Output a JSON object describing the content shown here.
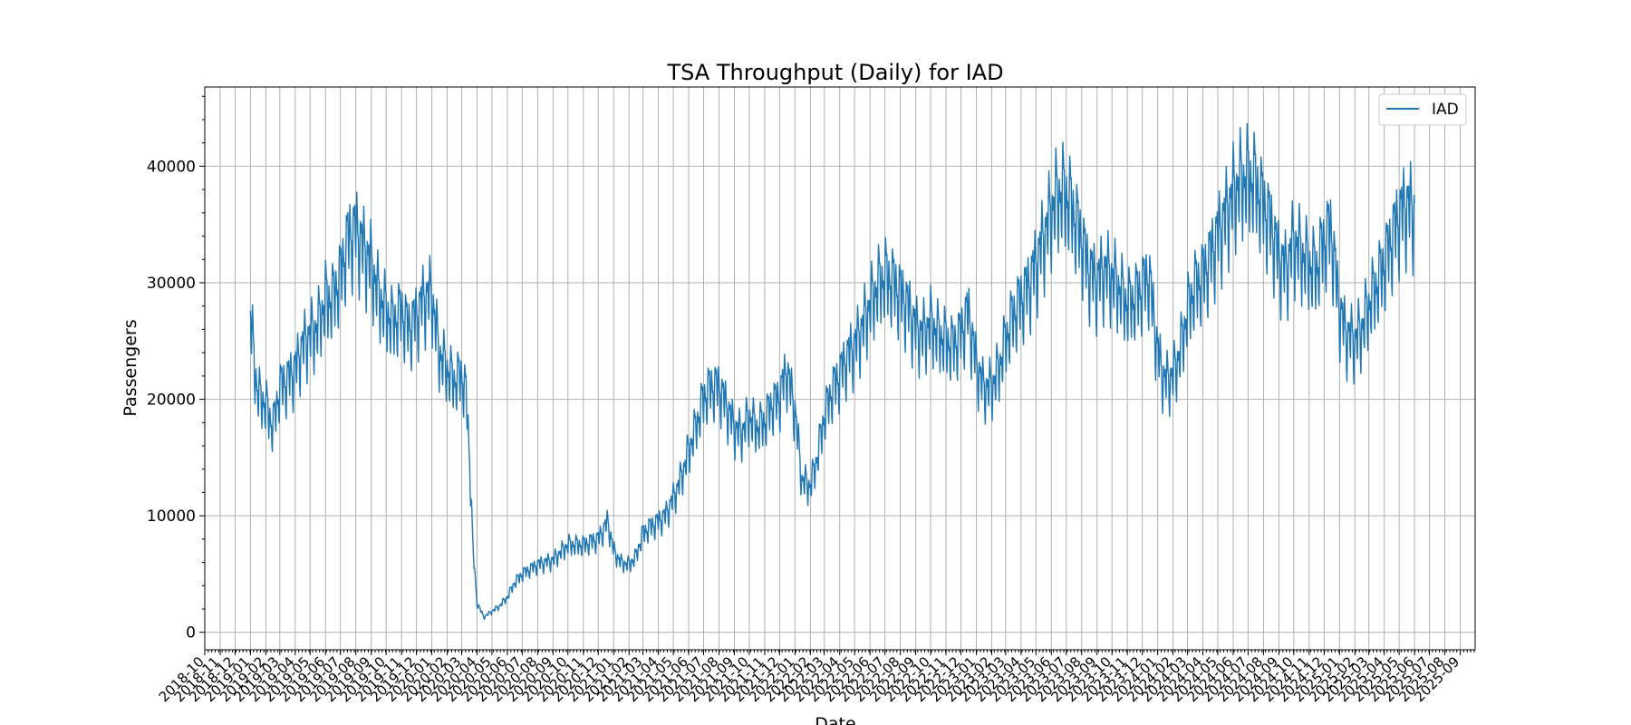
{
  "chart_data": {
    "type": "line",
    "title": "TSA Throughput (Daily) for IAD",
    "xlabel": "Date",
    "ylabel": "Passengers",
    "grid": true,
    "legend_position": "top-right",
    "x_range": [
      "2018-10-01",
      "2025-10-01"
    ],
    "ylim": [
      -1500,
      46800
    ],
    "yticks": [
      0,
      10000,
      20000,
      30000,
      40000
    ],
    "xticks": [
      "2018-10",
      "2018-11",
      "2018-12",
      "2019-01",
      "2019-02",
      "2019-03",
      "2019-04",
      "2019-05",
      "2019-06",
      "2019-07",
      "2019-08",
      "2019-09",
      "2019-10",
      "2019-11",
      "2019-12",
      "2020-01",
      "2020-02",
      "2020-03",
      "2020-04",
      "2020-05",
      "2020-06",
      "2020-07",
      "2020-08",
      "2020-09",
      "2020-10",
      "2020-11",
      "2020-12",
      "2021-01",
      "2021-02",
      "2021-03",
      "2021-04",
      "2021-05",
      "2021-06",
      "2021-07",
      "2021-08",
      "2021-09",
      "2021-10",
      "2021-11",
      "2021-12",
      "2022-01",
      "2022-02",
      "2022-03",
      "2022-04",
      "2022-05",
      "2022-06",
      "2022-07",
      "2022-08",
      "2022-09",
      "2022-10",
      "2022-11",
      "2022-12",
      "2023-01",
      "2023-02",
      "2023-03",
      "2023-04",
      "2023-05",
      "2023-06",
      "2023-07",
      "2023-08",
      "2023-09",
      "2023-10",
      "2023-11",
      "2023-12",
      "2024-01",
      "2024-02",
      "2024-03",
      "2024-04",
      "2024-05",
      "2024-06",
      "2024-07",
      "2024-08",
      "2024-09",
      "2024-10",
      "2024-11",
      "2024-12",
      "2025-01",
      "2025-02",
      "2025-03",
      "2025-04",
      "2025-05",
      "2025-06",
      "2025-07",
      "2025-08",
      "2025-09"
    ],
    "series": [
      {
        "name": "IAD",
        "color": "#1f77b4",
        "points": [
          [
            "2019-01-01",
            26800
          ],
          [
            "2019-01-15",
            20500
          ],
          [
            "2019-02-01",
            19500
          ],
          [
            "2019-02-15",
            17500
          ],
          [
            "2019-03-01",
            21000
          ],
          [
            "2019-03-15",
            21500
          ],
          [
            "2019-04-01",
            22500
          ],
          [
            "2019-04-15",
            24500
          ],
          [
            "2019-05-01",
            25500
          ],
          [
            "2019-05-15",
            26000
          ],
          [
            "2019-06-01",
            28500
          ],
          [
            "2019-06-15",
            28500
          ],
          [
            "2019-07-01",
            30500
          ],
          [
            "2019-07-15",
            33500
          ],
          [
            "2019-08-01",
            34500
          ],
          [
            "2019-08-15",
            33000
          ],
          [
            "2019-09-01",
            31500
          ],
          [
            "2019-09-15",
            29000
          ],
          [
            "2019-10-01",
            27500
          ],
          [
            "2019-10-15",
            26500
          ],
          [
            "2019-11-01",
            27500
          ],
          [
            "2019-11-15",
            26000
          ],
          [
            "2019-12-01",
            27000
          ],
          [
            "2019-12-15",
            28500
          ],
          [
            "2020-01-01",
            29000
          ],
          [
            "2020-01-15",
            24000
          ],
          [
            "2020-02-01",
            22500
          ],
          [
            "2020-02-15",
            21500
          ],
          [
            "2020-03-01",
            22000
          ],
          [
            "2020-03-10",
            20500
          ],
          [
            "2020-03-17",
            15000
          ],
          [
            "2020-03-24",
            7000
          ],
          [
            "2020-04-01",
            2500
          ],
          [
            "2020-04-15",
            1300
          ],
          [
            "2020-05-01",
            1800
          ],
          [
            "2020-05-15",
            2200
          ],
          [
            "2020-06-01",
            3000
          ],
          [
            "2020-06-15",
            4200
          ],
          [
            "2020-07-01",
            5000
          ],
          [
            "2020-08-01",
            5800
          ],
          [
            "2020-09-01",
            6200
          ],
          [
            "2020-10-01",
            7500
          ],
          [
            "2020-11-01",
            7500
          ],
          [
            "2020-12-01",
            8000
          ],
          [
            "2020-12-20",
            9500
          ],
          [
            "2021-01-01",
            7000
          ],
          [
            "2021-01-15",
            6000
          ],
          [
            "2021-02-01",
            5800
          ],
          [
            "2021-02-15",
            6500
          ],
          [
            "2021-03-01",
            8500
          ],
          [
            "2021-03-15",
            9000
          ],
          [
            "2021-04-01",
            9500
          ],
          [
            "2021-04-15",
            10000
          ],
          [
            "2021-05-01",
            11500
          ],
          [
            "2021-05-15",
            13000
          ],
          [
            "2021-06-01",
            15500
          ],
          [
            "2021-06-15",
            17500
          ],
          [
            "2021-07-01",
            20000
          ],
          [
            "2021-07-15",
            21000
          ],
          [
            "2021-08-01",
            21000
          ],
          [
            "2021-08-15",
            19500
          ],
          [
            "2021-09-01",
            17500
          ],
          [
            "2021-09-15",
            17000
          ],
          [
            "2021-10-01",
            18500
          ],
          [
            "2021-10-15",
            17500
          ],
          [
            "2021-11-01",
            18000
          ],
          [
            "2021-11-15",
            19500
          ],
          [
            "2021-12-01",
            20000
          ],
          [
            "2021-12-15",
            22500
          ],
          [
            "2022-01-01",
            19000
          ],
          [
            "2022-01-15",
            13000
          ],
          [
            "2022-02-01",
            12500
          ],
          [
            "2022-02-15",
            15000
          ],
          [
            "2022-03-01",
            18500
          ],
          [
            "2022-03-15",
            20500
          ],
          [
            "2022-04-01",
            22000
          ],
          [
            "2022-04-15",
            23500
          ],
          [
            "2022-05-01",
            24500
          ],
          [
            "2022-05-15",
            26000
          ],
          [
            "2022-06-01",
            28000
          ],
          [
            "2022-06-15",
            29500
          ],
          [
            "2022-07-01",
            30500
          ],
          [
            "2022-07-15",
            30000
          ],
          [
            "2022-08-01",
            29000
          ],
          [
            "2022-08-15",
            28000
          ],
          [
            "2022-09-01",
            26000
          ],
          [
            "2022-09-15",
            25500
          ],
          [
            "2022-10-01",
            26500
          ],
          [
            "2022-10-15",
            25500
          ],
          [
            "2022-11-01",
            25000
          ],
          [
            "2022-11-15",
            24500
          ],
          [
            "2022-12-01",
            25500
          ],
          [
            "2022-12-15",
            27500
          ],
          [
            "2023-01-01",
            23000
          ],
          [
            "2023-01-15",
            21000
          ],
          [
            "2023-02-01",
            21000
          ],
          [
            "2023-02-15",
            22500
          ],
          [
            "2023-03-01",
            25000
          ],
          [
            "2023-03-15",
            27000
          ],
          [
            "2023-04-01",
            28500
          ],
          [
            "2023-04-15",
            29500
          ],
          [
            "2023-05-01",
            31500
          ],
          [
            "2023-05-15",
            33500
          ],
          [
            "2023-06-01",
            36000
          ],
          [
            "2023-06-15",
            37500
          ],
          [
            "2023-07-01",
            37500
          ],
          [
            "2023-07-15",
            36000
          ],
          [
            "2023-08-01",
            33500
          ],
          [
            "2023-08-15",
            31000
          ],
          [
            "2023-09-01",
            30000
          ],
          [
            "2023-09-15",
            31000
          ],
          [
            "2023-10-01",
            30500
          ],
          [
            "2023-10-15",
            29500
          ],
          [
            "2023-11-01",
            28000
          ],
          [
            "2023-11-15",
            28500
          ],
          [
            "2023-12-01",
            29500
          ],
          [
            "2023-12-15",
            30500
          ],
          [
            "2024-01-01",
            24000
          ],
          [
            "2024-01-15",
            21500
          ],
          [
            "2024-02-01",
            22000
          ],
          [
            "2024-02-15",
            24000
          ],
          [
            "2024-03-01",
            27500
          ],
          [
            "2024-03-15",
            29500
          ],
          [
            "2024-04-01",
            30500
          ],
          [
            "2024-04-15",
            32000
          ],
          [
            "2024-05-01",
            34000
          ],
          [
            "2024-05-15",
            35500
          ],
          [
            "2024-06-01",
            37500
          ],
          [
            "2024-06-15",
            38500
          ],
          [
            "2024-07-01",
            39000
          ],
          [
            "2024-07-15",
            38500
          ],
          [
            "2024-08-01",
            36500
          ],
          [
            "2024-08-15",
            35000
          ],
          [
            "2024-09-01",
            32000
          ],
          [
            "2024-09-15",
            31000
          ],
          [
            "2024-10-01",
            33500
          ],
          [
            "2024-10-15",
            32500
          ],
          [
            "2024-11-01",
            31500
          ],
          [
            "2024-11-15",
            31000
          ],
          [
            "2024-12-01",
            33500
          ],
          [
            "2024-12-15",
            34500
          ],
          [
            "2025-01-01",
            27500
          ],
          [
            "2025-01-15",
            25500
          ],
          [
            "2025-02-01",
            25000
          ],
          [
            "2025-02-15",
            26000
          ],
          [
            "2025-03-01",
            28000
          ],
          [
            "2025-03-15",
            29500
          ],
          [
            "2025-04-01",
            31500
          ],
          [
            "2025-04-15",
            33500
          ],
          [
            "2025-05-01",
            35500
          ],
          [
            "2025-05-15",
            36500
          ],
          [
            "2025-06-01",
            36000
          ]
        ]
      }
    ]
  }
}
